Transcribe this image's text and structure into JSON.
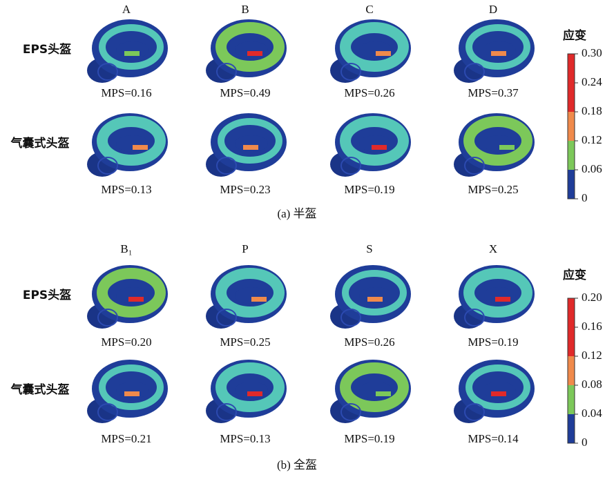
{
  "panels": [
    {
      "caption": "(a) 半盔",
      "columns": [
        "A",
        "B",
        "C",
        "D"
      ],
      "rows": [
        {
          "label": "EPS头盔",
          "mps": [
            "MPS=0.16",
            "MPS=0.49",
            "MPS=0.26",
            "MPS=0.37"
          ]
        },
        {
          "label": "气囊式头盔",
          "mps": [
            "MPS=0.13",
            "MPS=0.23",
            "MPS=0.19",
            "MPS=0.25"
          ]
        }
      ],
      "colorbar": {
        "title": "应变",
        "ticks": [
          "0.30",
          "0.24",
          "0.18",
          "0.12",
          "0.06",
          "0"
        ]
      }
    },
    {
      "caption": "(b) 全盔",
      "columns": [
        "B₁",
        "P",
        "S",
        "X"
      ],
      "rows": [
        {
          "label": "EPS头盔",
          "mps": [
            "MPS=0.20",
            "MPS=0.25",
            "MPS=0.26",
            "MPS=0.19"
          ]
        },
        {
          "label": "气囊式头盔",
          "mps": [
            "MPS=0.21",
            "MPS=0.13",
            "MPS=0.19",
            "MPS=0.14"
          ]
        }
      ],
      "colorbar": {
        "title": "应变",
        "ticks": [
          "0.20",
          "0.16",
          "0.12",
          "0.08",
          "0.04",
          "0"
        ]
      }
    }
  ]
}
